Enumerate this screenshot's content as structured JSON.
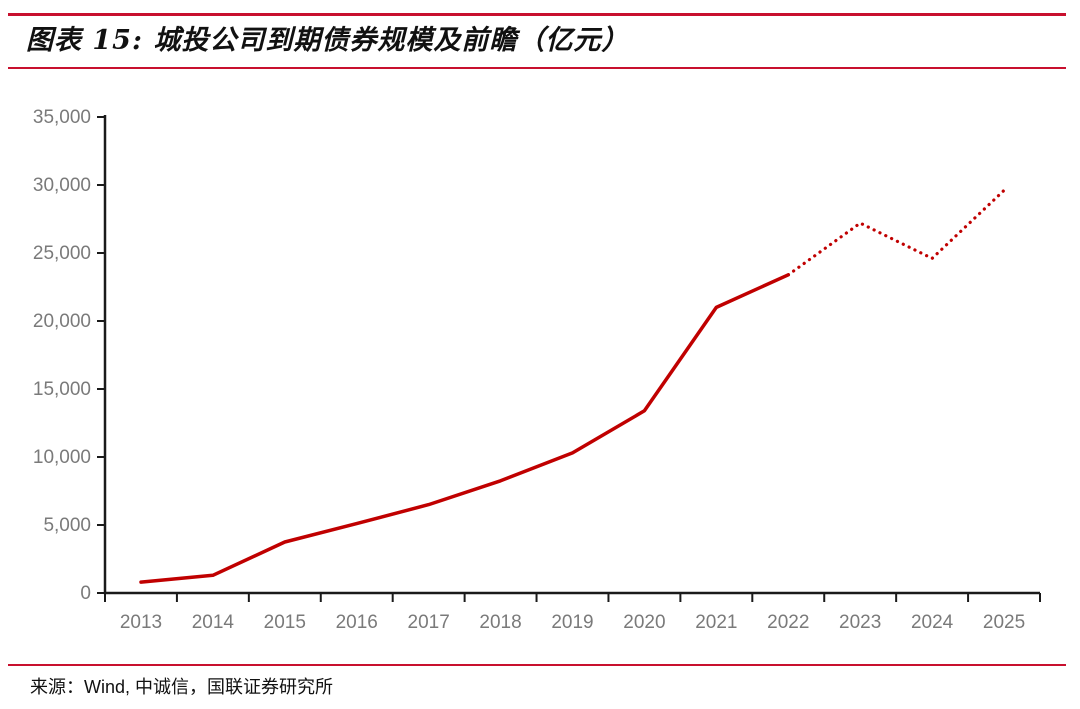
{
  "header": {
    "title": "图表 15:  城投公司到期债券规模及前瞻（亿元）"
  },
  "footer": {
    "source": "来源：Wind,  中诚信，国联证券研究所"
  },
  "colors": {
    "rule": "#c8102e",
    "line": "#c00000",
    "axis": "#1a1a1a",
    "tick_label": "#7a7a7a"
  },
  "chart_data": {
    "type": "line",
    "title": "城投公司到期债券规模及前瞻（亿元）",
    "categories": [
      "2013",
      "2014",
      "2015",
      "2016",
      "2017",
      "2018",
      "2019",
      "2020",
      "2021",
      "2022",
      "2023",
      "2024",
      "2025"
    ],
    "values": [
      800,
      1300,
      3750,
      5100,
      6500,
      8250,
      10300,
      13400,
      21000,
      23400,
      27200,
      24600,
      29600
    ],
    "solid_until_category": "2022",
    "dotted_from_category": "2022",
    "ylabel": "",
    "xlabel": "",
    "ylim": [
      0,
      35000
    ],
    "ytick_step": 5000,
    "ytick_labels": [
      "0",
      "5,000",
      "10,000",
      "15,000",
      "20,000",
      "25,000",
      "30,000",
      "35,000"
    ],
    "grid": false,
    "legend": "none"
  }
}
